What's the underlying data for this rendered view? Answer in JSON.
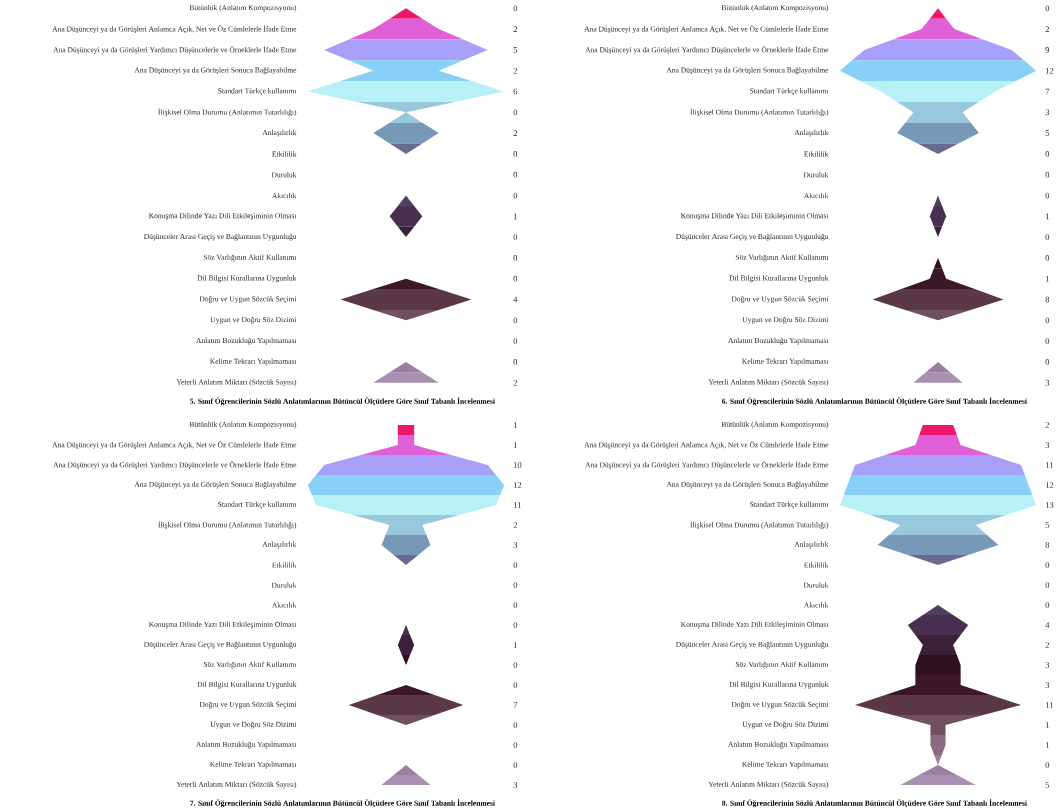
{
  "chart_data": [
    {
      "type": "other",
      "title": "5. Sınıf Öğrencilerinin Sözlü Anlatımlarının Bütüncül Ölçütlere Göre Sınıf Tabanlı İncelenmesi",
      "categories": [
        "Bütünlük (Anlatım Kompozisyonu)",
        "Ana Düşünceyi ya da Görüşleri Anlamca Açık, Net ve Öz Cümlelerle İfade Etme",
        "Ana Düşünceyi ya da Görüşleri Yardımcı Düşüncelerle ve Örneklerle İfade Etme",
        "Ana Düşünceyi ya da Görüşleri Sonuca Bağlayabilme",
        "Standart Türkçe kullanımı",
        "İlişkisel Olma Durumu (Anlatımın Tutarlılığı)",
        "Anlaşılırlık",
        "Etkililik",
        "Duruluk",
        "Akıcılık",
        "Konuşma Dilinde Yazı Dili Etkileşiminin Olması",
        "Düşünceler Arası Geçiş ve Bağlantının Uygunluğu",
        "Söz Varlığının Aktif Kullanımı",
        "Dil Bilgisi Kurallarına Uygunluk",
        "Doğru ve Uygun Sözcük Seçimi",
        "Uygun ve Doğru Söz Dizimi",
        "Anlatım Bozukluğu Yapılmaması",
        "Kelime Tekrarı Yapılmaması",
        "Yeterli Anlatım Miktarı (Sözcük Sayısı)"
      ],
      "values": [
        0,
        2,
        5,
        2,
        6,
        0,
        2,
        0,
        0,
        0,
        1,
        0,
        0,
        0,
        4,
        0,
        0,
        0,
        2
      ],
      "colors": [
        "#f0166e",
        "#e060d8",
        "#a8a0f8",
        "#88d0f8",
        "#b8f0f8",
        "#98c8dc",
        "#7898b8",
        "#6a6a90",
        "#5a5078",
        "#504060",
        "#4a3050",
        "#3a2038",
        "#301020",
        "#3a1828",
        "#5a3848",
        "#705060",
        "#8a6a80",
        "#9a80a0",
        "#a890b0"
      ],
      "data_labels": true
    },
    {
      "type": "other",
      "title": "6. Sınıf Öğrencilerinin Sözlü Anlatımlarının Bütüncül Ölçütlere Göre Sınıf Tabanlı İncelenmesi",
      "categories": [
        "Bütünlük (Anlatım Kompozisyonu)",
        "Ana Düşünceyi ya da Görüşleri Anlamca Açık, Net ve Öz Cümlelerle İfade Etme",
        "Ana Düşünceyi ya da Görüşleri Yardımcı Düşüncelerle ve Örneklerle İfade Etme",
        "Ana Düşünceyi ya da Görüşleri Sonuca Bağlayabilme",
        "Standart Türkçe kullanımı",
        "İlişkisel Olma Durumu (Anlatımın Tutarlılığı)",
        "Anlaşılırlık",
        "Etkililik",
        "Duruluk",
        "Akıcılık",
        "Konuşma Dilinde Yazı Dili Etkileşiminin Olması",
        "Düşünceler Arası Geçiş ve Bağlantının Uygunluğu",
        "Söz Varlığının Aktif Kullanımı",
        "Dil Bilgisi Kurallarına Uygunluk",
        "Doğru ve Uygun Sözcük Seçimi",
        "Uygun ve Doğru Söz Dizimi",
        "Anlatım Bozukluğu Yapılmaması",
        "Kelime Tekrarı Yapılmaması",
        "Yeterli Anlatım Miktarı (Sözcük Sayısı)"
      ],
      "values": [
        0,
        2,
        9,
        12,
        7,
        3,
        5,
        0,
        0,
        0,
        1,
        0,
        0,
        1,
        8,
        0,
        0,
        0,
        3
      ],
      "colors": [
        "#f0166e",
        "#e060d8",
        "#a8a0f8",
        "#88d0f8",
        "#b8f0f8",
        "#98c8dc",
        "#7898b8",
        "#6a6a90",
        "#5a5078",
        "#504060",
        "#4a3050",
        "#3a2038",
        "#301020",
        "#3a1828",
        "#5a3848",
        "#705060",
        "#8a6a80",
        "#9a80a0",
        "#a890b0"
      ],
      "data_labels": true
    },
    {
      "type": "other",
      "title": "7. Sınıf Öğrencilerinin Sözlü Anlatımlarının Bütüncül Ölçütlere Göre Sınıf Tabanlı İncelenmesi",
      "categories": [
        "Bütünlük (Anlatım Kompozisyonu)",
        "Ana Düşünceyi ya da Görüşleri Anlamca Açık, Net ve Öz Cümlelerle İfade Etme",
        "Ana Düşünceyi ya da Görüşleri Yardımcı Düşüncelerle ve Örneklerle İfade Etme",
        "Ana Düşünceyi ya da Görüşleri Sonuca Bağlayabilme",
        "Standart Türkçe kullanımı",
        "İlişkisel Olma Durumu (Anlatımın Tutarlılığı)",
        "Anlaşılırlık",
        "Etkililik",
        "Duruluk",
        "Akıcılık",
        "Konuşma Dilinde Yazı Dili Etkileşiminin Olması",
        "Düşünceler Arası Geçiş ve Bağlantının Uygunluğu",
        "Söz Varlığının Aktif Kullanımı",
        "Dil Bilgisi Kurallarına Uygunluk",
        "Doğru ve Uygun Sözcük Seçimi",
        "Uygun ve Doğru Söz Dizimi",
        "Anlatım Bozukluğu Yapılmaması",
        "Kelime Tekrarı Yapılmaması",
        "Yeterli Anlatım Miktarı (Sözcük Sayısı)"
      ],
      "values": [
        1,
        1,
        10,
        12,
        11,
        2,
        3,
        0,
        0,
        0,
        0,
        1,
        0,
        0,
        7,
        0,
        0,
        0,
        3
      ],
      "colors": [
        "#f0166e",
        "#e060d8",
        "#a8a0f8",
        "#88d0f8",
        "#b8f0f8",
        "#98c8dc",
        "#7898b8",
        "#6a6a90",
        "#5a5078",
        "#504060",
        "#4a3050",
        "#3a2038",
        "#301020",
        "#3a1828",
        "#5a3848",
        "#705060",
        "#8a6a80",
        "#9a80a0",
        "#a890b0"
      ],
      "data_labels": true
    },
    {
      "type": "other",
      "title": "8. Sınıf Öğrencilerinin Sözlü Anlatımlarının Bütüncül Ölçütlere Göre Sınıf Tabanlı İncelenmesi",
      "categories": [
        "Bütünlük (Anlatım Kompozisyonu)",
        "Ana Düşünceyi ya da Görüşleri Anlamca Açık, Net ve Öz Cümlelerle İfade Etme",
        "Ana Düşünceyi ya da Görüşleri Yardımcı Düşüncelerle ve Örneklerle İfade Etme",
        "Ana Düşünceyi ya da Görüşleri Sonuca Bağlayabilme",
        "Standart Türkçe kullanımı",
        "İlişkisel Olma Durumu (Anlatımın Tutarlılığı)",
        "Anlaşılırlık",
        "Etkililik",
        "Duruluk",
        "Akıcılık",
        "Konuşma Dilinde Yazı Dili Etkileşiminin Olması",
        "Düşünceler Arası Geçiş ve Bağlantının Uygunluğu",
        "Söz Varlığının Aktif Kullanımı",
        "Dil Bilgisi Kurallarına Uygunluk",
        "Doğru ve Uygun Sözcük Seçimi",
        "Uygun ve Doğru Söz Dizimi",
        "Anlatım Bozukluğu Yapılmaması",
        "Kelime Tekrarı Yapılmaması",
        "Yeterli Anlatım Miktarı (Sözcük Sayısı)"
      ],
      "values": [
        2,
        3,
        11,
        12,
        13,
        5,
        8,
        0,
        0,
        0,
        4,
        2,
        3,
        3,
        11,
        1,
        1,
        0,
        5
      ],
      "colors": [
        "#f0166e",
        "#e060d8",
        "#a8a0f8",
        "#88d0f8",
        "#b8f0f8",
        "#98c8dc",
        "#7898b8",
        "#6a6a90",
        "#5a5078",
        "#504060",
        "#4a3050",
        "#3a2038",
        "#301020",
        "#3a1828",
        "#5a3848",
        "#705060",
        "#8a6a80",
        "#9a80a0",
        "#a890b0"
      ],
      "data_labels": true
    }
  ]
}
